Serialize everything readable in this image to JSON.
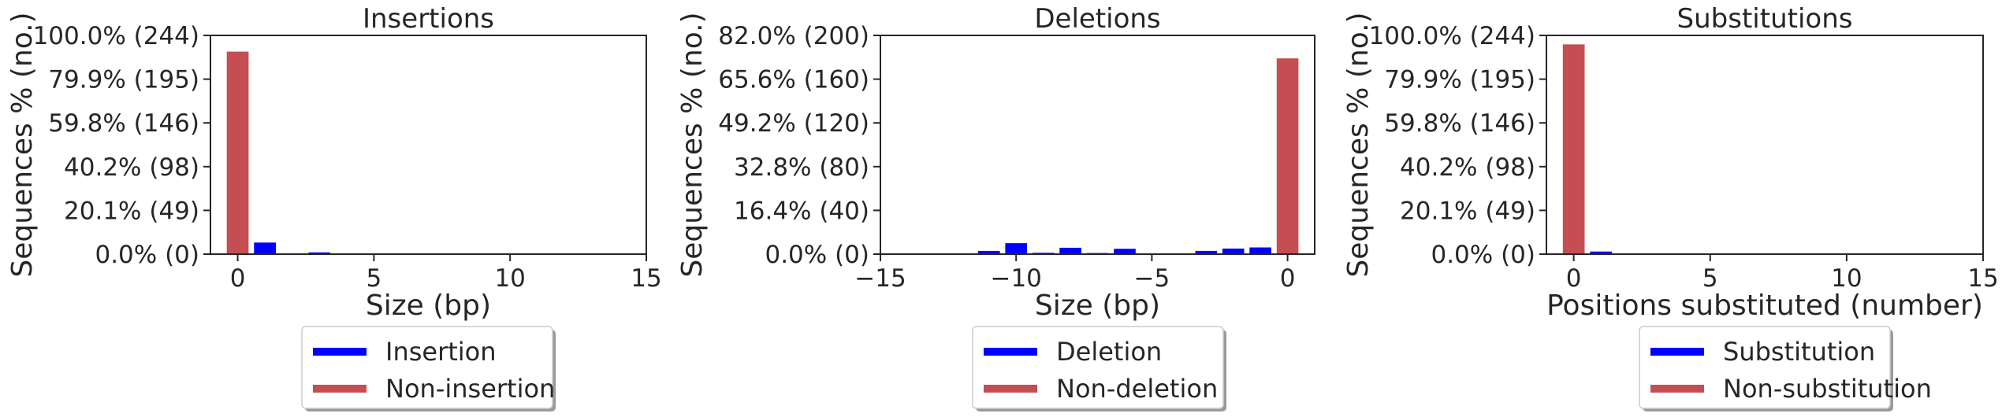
{
  "chart_data": [
    {
      "type": "bar",
      "title": "Insertions",
      "xlabel": "Size (bp)",
      "ylabel": "Sequences % (no.)",
      "xlim": [
        -1,
        15
      ],
      "ylim": [
        0,
        100
      ],
      "xticks": [
        "0",
        "5",
        "10",
        "15"
      ],
      "yticks": [
        "0.0% (0)",
        "20.1% (49)",
        "40.2% (98)",
        "59.8% (146)",
        "79.9% (195)",
        "100.0% (244)"
      ],
      "grid": false,
      "legend_position": "bottom-center",
      "series": [
        {
          "name": "Insertion",
          "color": "#0000ff",
          "x": [
            1,
            3
          ],
          "y": [
            5.3,
            0.8
          ]
        },
        {
          "name": "Non-insertion",
          "color": "#c44e52",
          "x": [
            0
          ],
          "y": [
            92.6
          ]
        }
      ]
    },
    {
      "type": "bar",
      "title": "Deletions",
      "xlabel": "Size (bp)",
      "ylabel": "Sequences % (no.)",
      "xlim": [
        -15,
        1
      ],
      "ylim": [
        0,
        82
      ],
      "xticks": [
        "−15",
        "−10",
        "−5",
        "0"
      ],
      "yticks": [
        "0.0% (0)",
        "16.4% (40)",
        "32.8% (80)",
        "49.2% (120)",
        "65.6% (160)",
        "82.0% (200)"
      ],
      "grid": false,
      "legend_position": "bottom-center",
      "series": [
        {
          "name": "Deletion",
          "color": "#0000ff",
          "x": [
            -11,
            -10,
            -9,
            -8,
            -7,
            -6,
            -3,
            -2,
            -1
          ],
          "y": [
            1.2,
            4.1,
            0.5,
            2.4,
            0.4,
            2.0,
            1.2,
            2.1,
            2.5
          ]
        },
        {
          "name": "Non-deletion",
          "color": "#c44e52",
          "x": [
            0
          ],
          "y": [
            73.4
          ]
        }
      ]
    },
    {
      "type": "bar",
      "title": "Substitutions",
      "xlabel": "Positions substituted (number)",
      "ylabel": "Sequences % (no.)",
      "xlim": [
        -1,
        15
      ],
      "ylim": [
        0,
        100
      ],
      "xticks": [
        "0",
        "5",
        "10",
        "15"
      ],
      "yticks": [
        "0.0% (0)",
        "20.1% (49)",
        "40.2% (98)",
        "59.8% (146)",
        "79.9% (195)",
        "100.0% (244)"
      ],
      "grid": false,
      "legend_position": "bottom-center",
      "series": [
        {
          "name": "Substitution",
          "color": "#0000ff",
          "x": [
            1
          ],
          "y": [
            1.2
          ]
        },
        {
          "name": "Non-substitution",
          "color": "#c44e52",
          "x": [
            0
          ],
          "y": [
            95.9
          ]
        }
      ]
    }
  ]
}
